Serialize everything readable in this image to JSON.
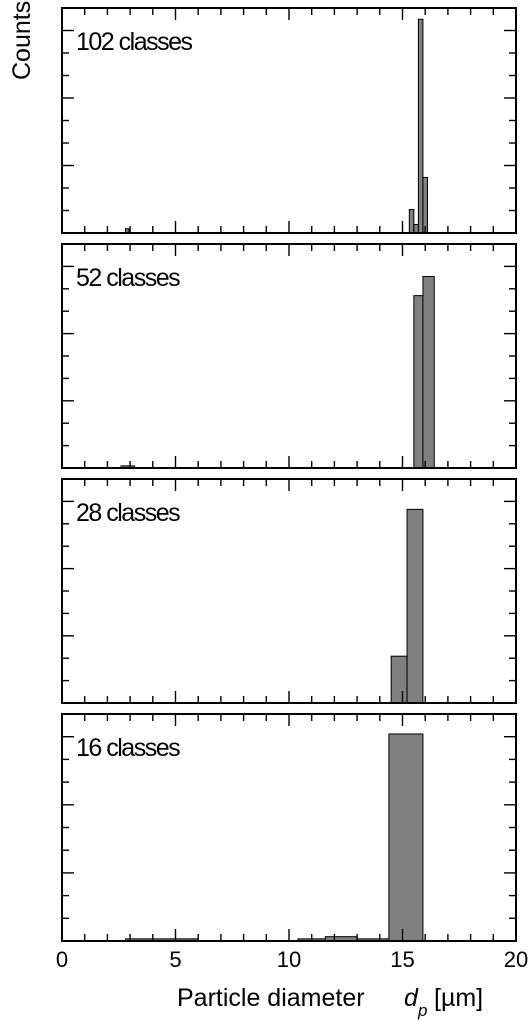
{
  "chart_data": {
    "type": "bar",
    "ylabel": "Counts",
    "xlabel": {
      "text": "Particle diameter",
      "symbol": "d",
      "subscript": "p",
      "unit": "[µm]"
    },
    "xlim": [
      0,
      20
    ],
    "xticks": [
      "0",
      "5",
      "10",
      "15",
      "20"
    ],
    "panels": [
      {
        "label": "102 classes",
        "ylim": [
          0,
          1
        ],
        "bars": [
          {
            "x0": 2.8,
            "x1": 2.95,
            "value": 0.02
          },
          {
            "x0": 15.3,
            "x1": 15.5,
            "value": 0.11
          },
          {
            "x0": 15.5,
            "x1": 15.7,
            "value": 0.04
          },
          {
            "x0": 15.7,
            "x1": 15.9,
            "value": 1.0
          },
          {
            "x0": 15.9,
            "x1": 16.1,
            "value": 0.26
          }
        ]
      },
      {
        "label": "52 classes",
        "ylim": [
          0,
          1
        ],
        "bars": [
          {
            "x0": 2.6,
            "x1": 3.2,
            "value": 0.01
          },
          {
            "x0": 15.5,
            "x1": 15.9,
            "value": 0.81
          },
          {
            "x0": 15.9,
            "x1": 16.4,
            "value": 0.9
          }
        ]
      },
      {
        "label": "28 classes",
        "ylim": [
          0,
          1
        ],
        "bars": [
          {
            "x0": 14.5,
            "x1": 15.2,
            "value": 0.22
          },
          {
            "x0": 15.2,
            "x1": 15.9,
            "value": 0.91
          }
        ]
      },
      {
        "label": "16 classes",
        "ylim": [
          0,
          1
        ],
        "bars": [
          {
            "x0": 2.8,
            "x1": 6.0,
            "value": 0.01
          },
          {
            "x0": 10.4,
            "x1": 11.6,
            "value": 0.01
          },
          {
            "x0": 11.6,
            "x1": 13.0,
            "value": 0.02
          },
          {
            "x0": 13.0,
            "x1": 14.4,
            "value": 0.01
          },
          {
            "x0": 14.4,
            "x1": 15.9,
            "value": 0.96
          }
        ]
      }
    ]
  }
}
